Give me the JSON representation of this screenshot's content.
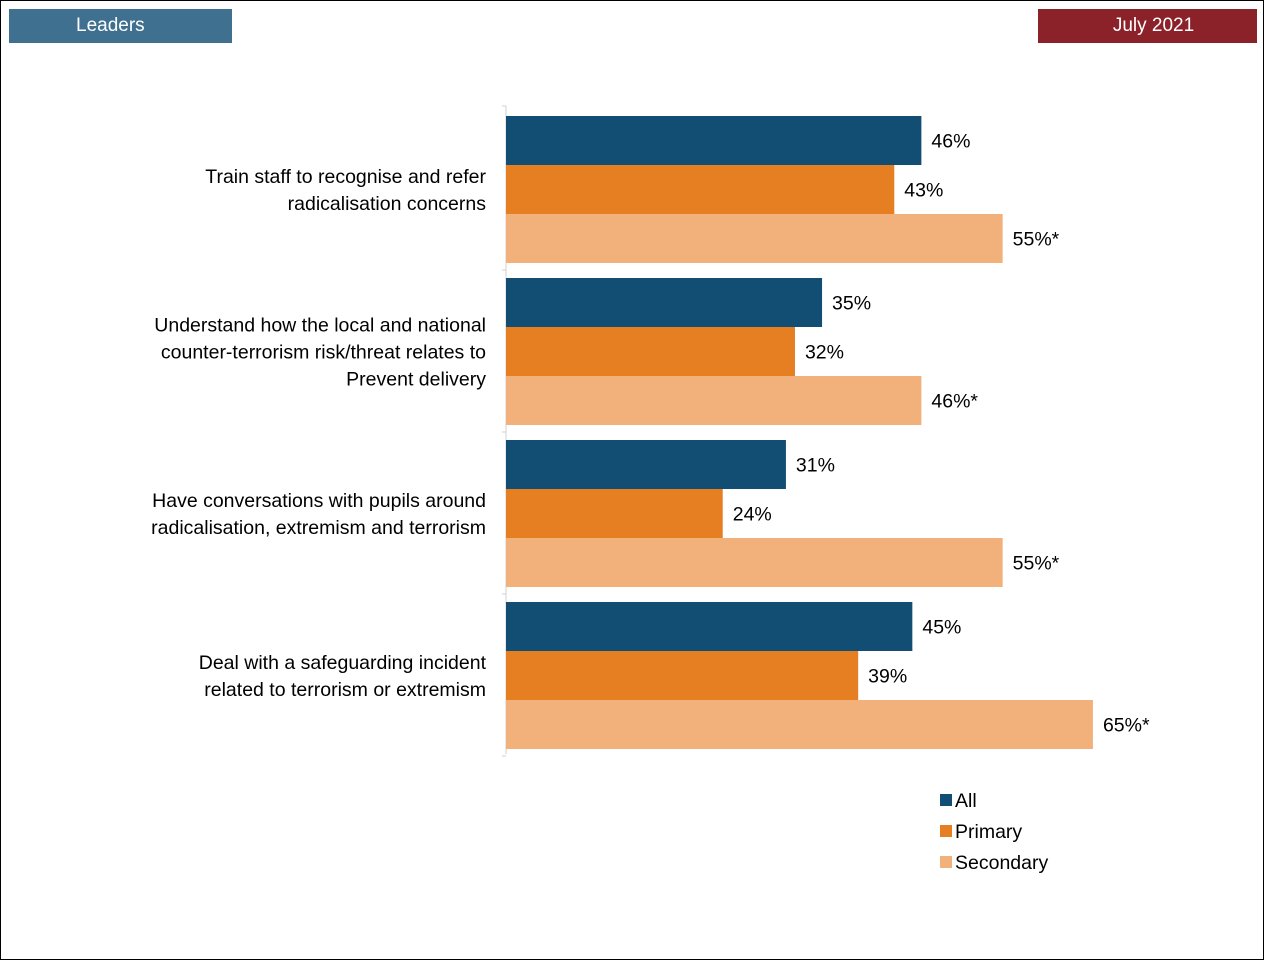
{
  "header": {
    "left_tag": "Leaders",
    "right_tag": "July 2021"
  },
  "chart_data": {
    "type": "bar",
    "orientation": "horizontal",
    "categories": [
      [
        "Train staff to recognise and refer",
        "radicalisation concerns"
      ],
      [
        "Understand how the local and national",
        "counter-terrorism risk/threat relates to",
        "Prevent delivery"
      ],
      [
        "Have conversations with pupils around",
        "radicalisation, extremism and terrorism"
      ],
      [
        "Deal with a safeguarding incident",
        "related to terrorism or extremism"
      ]
    ],
    "series": [
      {
        "name": "All",
        "color": "#124e74",
        "values": [
          46,
          35,
          31,
          45
        ],
        "labels": [
          "46%",
          "35%",
          "31%",
          "45%"
        ]
      },
      {
        "name": "Primary",
        "color": "#e67e22",
        "values": [
          43,
          32,
          24,
          39
        ],
        "labels": [
          "43%",
          "32%",
          "24%",
          "39%"
        ]
      },
      {
        "name": "Secondary",
        "color": "#f2b07a",
        "values": [
          55,
          46,
          55,
          65
        ],
        "labels": [
          "55%*",
          "46%*",
          "55%*",
          "65%*"
        ]
      }
    ],
    "xlim": [
      0,
      100
    ],
    "grid": false,
    "legend_position": "bottom-right"
  }
}
